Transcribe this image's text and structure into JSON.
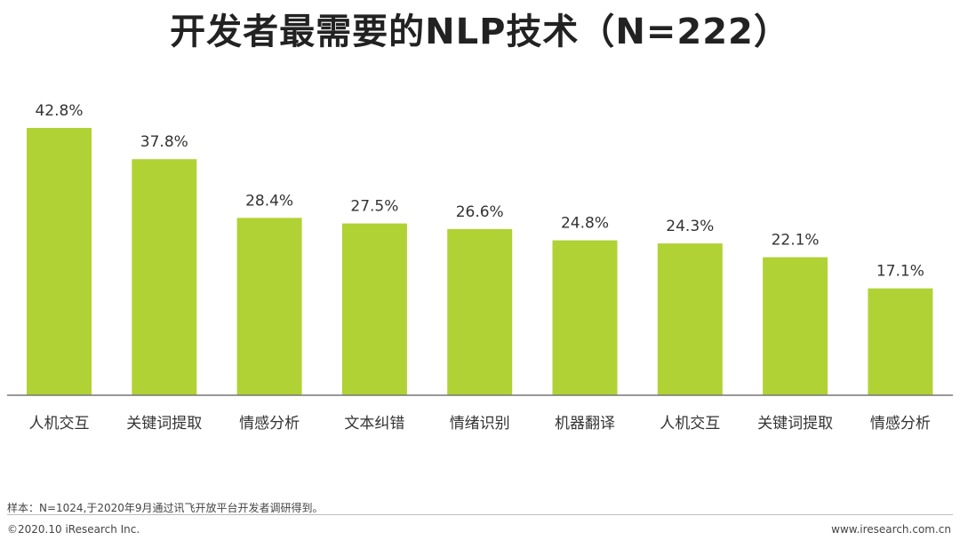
{
  "chart_data": {
    "type": "bar",
    "title": "开发者最需要的NLP技术（N=222）",
    "categories": [
      "人机交互",
      "关键词提取",
      "情感分析",
      "文本纠错",
      "情绪识别",
      "机器翻译",
      "人机交互",
      "关键词提取",
      "情感分析"
    ],
    "values": [
      42.8,
      37.8,
      28.4,
      27.5,
      26.6,
      24.8,
      24.3,
      22.1,
      17.1
    ],
    "value_labels": [
      "42.8%",
      "37.8%",
      "28.4%",
      "27.5%",
      "26.6%",
      "24.8%",
      "24.3%",
      "22.1%",
      "17.1%"
    ],
    "unit": "%",
    "ylim": [
      0,
      42.8
    ],
    "grid": false,
    "bar_color": "#b1d235"
  },
  "footer": {
    "note": "样本：N=1024,于2020年9月通过讯飞开放平台开发者调研得到。",
    "copyright": "©2020.10 iResearch Inc.",
    "website": "www.iresearch.com.cn"
  },
  "colors": {
    "bar": "#b1d235",
    "axis": "#777777",
    "text": "#333333"
  }
}
